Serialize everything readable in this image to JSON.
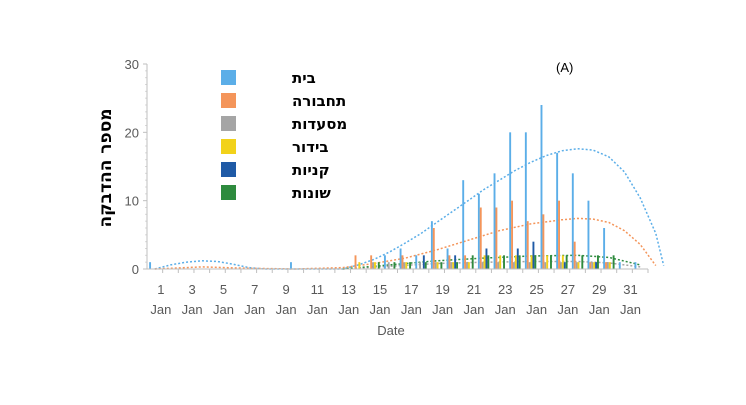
{
  "chart_data": {
    "type": "bar",
    "panel_label": "(A)",
    "xlabel": "Date",
    "ylabel": "מספר ההדבקה",
    "ylim": [
      0,
      30
    ],
    "yticks": [
      0,
      10,
      20,
      30
    ],
    "x": [
      1,
      2,
      3,
      4,
      5,
      6,
      7,
      8,
      9,
      10,
      11,
      12,
      13,
      14,
      15,
      16,
      17,
      18,
      19,
      20,
      21,
      22,
      23,
      24,
      25,
      26,
      27,
      28,
      29,
      30,
      31,
      32
    ],
    "xtick_labels": [
      {
        "day": 1,
        "line1": "1",
        "line2": "Jan"
      },
      {
        "day": 3,
        "line1": "3",
        "line2": "Jan"
      },
      {
        "day": 5,
        "line1": "5",
        "line2": "Jan"
      },
      {
        "day": 7,
        "line1": "7",
        "line2": "Jan"
      },
      {
        "day": 9,
        "line1": "9",
        "line2": "Jan"
      },
      {
        "day": 11,
        "line1": "11",
        "line2": "Jan"
      },
      {
        "day": 13,
        "line1": "13",
        "line2": "Jan"
      },
      {
        "day": 15,
        "line1": "15",
        "line2": "Jan"
      },
      {
        "day": 17,
        "line1": "17",
        "line2": "Jan"
      },
      {
        "day": 19,
        "line1": "19",
        "line2": "Jan"
      },
      {
        "day": 21,
        "line1": "21",
        "line2": "Jan"
      },
      {
        "day": 23,
        "line1": "23",
        "line2": "Jan"
      },
      {
        "day": 25,
        "line1": "25",
        "line2": "Jan"
      },
      {
        "day": 27,
        "line1": "27",
        "line2": "Jan"
      },
      {
        "day": 29,
        "line1": "29",
        "line2": "Jan"
      },
      {
        "day": 31,
        "line1": "31",
        "line2": "Jan"
      }
    ],
    "legend_position": "top-left",
    "series": [
      {
        "name": "בית",
        "color": "#5BAEE8",
        "values": [
          1,
          0,
          0,
          0,
          0,
          0,
          0,
          0,
          0,
          1,
          0,
          0,
          0,
          0,
          0,
          2,
          3,
          2,
          7,
          3,
          13,
          11,
          14,
          20,
          20,
          24,
          17,
          14,
          10,
          6,
          1,
          1
        ]
      },
      {
        "name": "תחבורה",
        "color": "#F4955A",
        "values": [
          0,
          0,
          0,
          0,
          0,
          0,
          0,
          0,
          0,
          0,
          0,
          0,
          0,
          2,
          2,
          0,
          2,
          0,
          6,
          2,
          2,
          9,
          9,
          10,
          7,
          8,
          10,
          4,
          1,
          1,
          0,
          0
        ]
      },
      {
        "name": "מסעדות",
        "color": "#A5A5A5",
        "values": [
          0,
          0,
          0,
          0,
          0,
          0,
          0,
          0,
          0,
          0,
          0,
          0,
          0,
          0,
          1,
          1,
          1,
          1,
          1,
          1,
          1,
          1,
          1,
          1,
          1,
          1,
          1,
          1,
          1,
          1,
          0,
          0
        ]
      },
      {
        "name": "בידור",
        "color": "#F2D21A",
        "values": [
          0,
          0,
          0,
          0,
          0,
          0,
          0,
          0,
          0,
          0,
          0,
          0,
          0,
          1,
          1,
          0,
          1,
          0,
          1,
          1,
          1,
          2,
          2,
          2,
          2,
          2,
          2,
          1,
          1,
          1,
          0,
          0
        ]
      },
      {
        "name": "קניות",
        "color": "#1F5AA6",
        "values": [
          0,
          0,
          0,
          0,
          0,
          0,
          0,
          0,
          0,
          0,
          0,
          0,
          0,
          0,
          0,
          0,
          0,
          2,
          0,
          2,
          0,
          3,
          0,
          3,
          4,
          0,
          1,
          0,
          1,
          0,
          0,
          0
        ]
      },
      {
        "name": "שונות",
        "color": "#2E8B3E",
        "values": [
          0,
          0,
          0,
          0,
          0,
          0,
          0,
          0,
          0,
          0,
          0,
          0,
          0,
          0,
          1,
          1,
          1,
          1,
          1,
          1,
          2,
          2,
          2,
          2,
          2,
          2,
          2,
          2,
          2,
          2,
          0,
          0
        ]
      }
    ],
    "trendlines": [
      {
        "series": "בית",
        "color": "#5BAEE8",
        "points": [
          [
            1,
            0
          ],
          [
            2,
            0.6
          ],
          [
            3,
            1
          ],
          [
            4,
            1.2
          ],
          [
            5,
            1.1
          ],
          [
            6,
            0.7
          ],
          [
            7,
            0.2
          ],
          [
            8,
            0
          ],
          [
            13,
            0
          ],
          [
            14,
            0.6
          ],
          [
            15,
            1.4
          ],
          [
            16,
            2.5
          ],
          [
            17,
            3.8
          ],
          [
            18,
            5.2
          ],
          [
            19,
            6.8
          ],
          [
            20,
            8.4
          ],
          [
            21,
            10
          ],
          [
            22,
            11.6
          ],
          [
            23,
            13
          ],
          [
            24,
            14.4
          ],
          [
            25,
            15.6
          ],
          [
            26,
            16.6
          ],
          [
            27,
            17.3
          ],
          [
            28,
            17.6
          ],
          [
            29,
            17.4
          ],
          [
            30,
            16.4
          ],
          [
            31,
            14.2
          ],
          [
            32,
            10.4
          ],
          [
            33,
            5.2
          ],
          [
            33.5,
            0.5
          ]
        ]
      },
      {
        "series": "תחבורה",
        "color": "#F4955A",
        "points": [
          [
            1,
            0
          ],
          [
            4,
            0.3
          ],
          [
            7,
            0.1
          ],
          [
            10,
            0
          ],
          [
            13,
            0.2
          ],
          [
            15,
            0.8
          ],
          [
            17,
            1.6
          ],
          [
            19,
            2.8
          ],
          [
            21,
            4.2
          ],
          [
            23,
            5.6
          ],
          [
            25,
            6.6
          ],
          [
            27,
            7.2
          ],
          [
            28,
            7.4
          ],
          [
            29,
            7.3
          ],
          [
            30,
            6.8
          ],
          [
            31,
            5.6
          ],
          [
            32,
            3.6
          ],
          [
            33,
            0.5
          ]
        ]
      },
      {
        "series": "מסעדות",
        "color": "#A5A5A5",
        "points": [
          [
            13,
            0
          ],
          [
            16,
            0.4
          ],
          [
            19,
            0.8
          ],
          [
            22,
            1
          ],
          [
            25,
            1.1
          ],
          [
            28,
            1.1
          ],
          [
            30,
            0.9
          ],
          [
            32,
            0.3
          ]
        ]
      },
      {
        "series": "שונות",
        "color": "#2E8B3E",
        "points": [
          [
            13,
            0
          ],
          [
            16,
            0.6
          ],
          [
            19,
            1.2
          ],
          [
            22,
            1.6
          ],
          [
            25,
            1.9
          ],
          [
            28,
            2
          ],
          [
            30,
            1.7
          ],
          [
            32,
            0.6
          ]
        ]
      }
    ]
  }
}
